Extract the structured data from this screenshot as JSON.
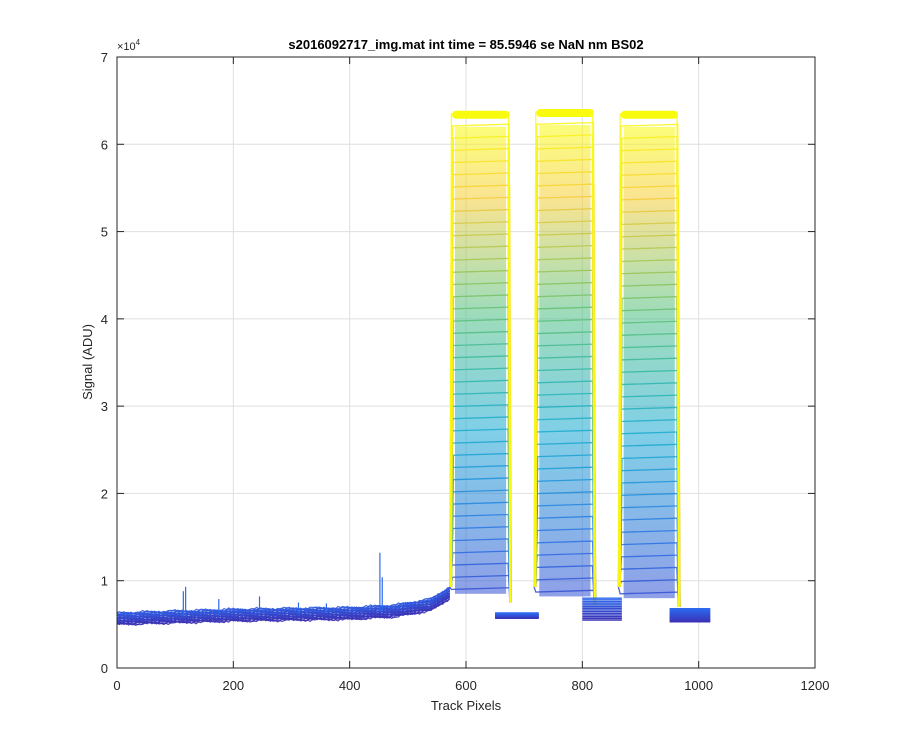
{
  "chart_data": {
    "type": "line",
    "title": "s2016092717_img.mat int time = 85.5946 se  NaN nm BS02",
    "xlabel": "Track Pixels",
    "ylabel": "Signal (ADU)",
    "xlim": [
      0,
      1200
    ],
    "ylim": [
      0,
      70000
    ],
    "y_exponent_label": "×10",
    "y_exponent_power": "4",
    "xticks": [
      "0",
      "200",
      "400",
      "600",
      "800",
      "1000",
      "1200"
    ],
    "yticks": [
      "0",
      "1",
      "2",
      "3",
      "4",
      "5",
      "6",
      "7"
    ],
    "grid": true,
    "colormap": [
      "#3e26a8",
      "#2b6ff5",
      "#16a6d9",
      "#2ebda0",
      "#95c23e",
      "#f6c93c",
      "#f9fb0e"
    ],
    "baseline": {
      "x": [
        0,
        100,
        200,
        300,
        400,
        480,
        540,
        575
      ],
      "y": [
        5700,
        5900,
        6100,
        6200,
        6300,
        6600,
        7300,
        8800
      ]
    },
    "plateaus": [
      {
        "x_start": 575,
        "x_end": 675,
        "peak": 63500,
        "floor_after": 6000
      },
      {
        "x_start": 720,
        "x_end": 820,
        "peak": 63700,
        "floor_after": 5700
      },
      {
        "x_start": 865,
        "x_end": 965,
        "peak": 63500,
        "floor_after": 5500
      }
    ],
    "baseline_end": {
      "x": 1020,
      "y": 6500
    },
    "spikes": [
      {
        "x": 114,
        "y": 8800
      },
      {
        "x": 118,
        "y": 9300
      },
      {
        "x": 175,
        "y": 7900
      },
      {
        "x": 245,
        "y": 8200
      },
      {
        "x": 312,
        "y": 7500
      },
      {
        "x": 360,
        "y": 7400
      },
      {
        "x": 452,
        "y": 13200
      },
      {
        "x": 456,
        "y": 10400
      }
    ]
  }
}
